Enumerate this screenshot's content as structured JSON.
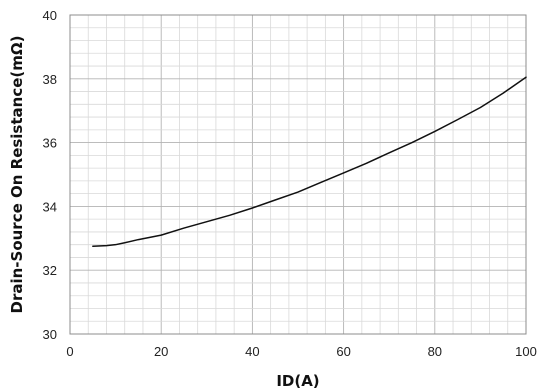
{
  "chart_data": {
    "type": "line",
    "title": "",
    "xlabel": "ID(A)",
    "ylabel": "Drain-Source On Resistance(mΩ)",
    "xlim": [
      0,
      100
    ],
    "ylim": [
      30,
      40
    ],
    "xticks": [
      0,
      20,
      40,
      60,
      80,
      100
    ],
    "yticks": [
      30,
      32,
      34,
      36,
      38,
      40
    ],
    "x_minor_step": 4,
    "y_minor_step": 0.4,
    "grid": true,
    "legend": "none",
    "series": [
      {
        "color": "#111111",
        "x": [
          5,
          8,
          10,
          12,
          15,
          20,
          25,
          30,
          35,
          40,
          45,
          50,
          55,
          60,
          65,
          70,
          75,
          80,
          85,
          90,
          95,
          100
        ],
        "y": [
          32.75,
          32.77,
          32.8,
          32.86,
          32.96,
          33.1,
          33.32,
          33.52,
          33.72,
          33.95,
          34.2,
          34.45,
          34.75,
          35.05,
          35.35,
          35.68,
          36.0,
          36.35,
          36.72,
          37.1,
          37.55,
          38.05
        ]
      }
    ]
  }
}
